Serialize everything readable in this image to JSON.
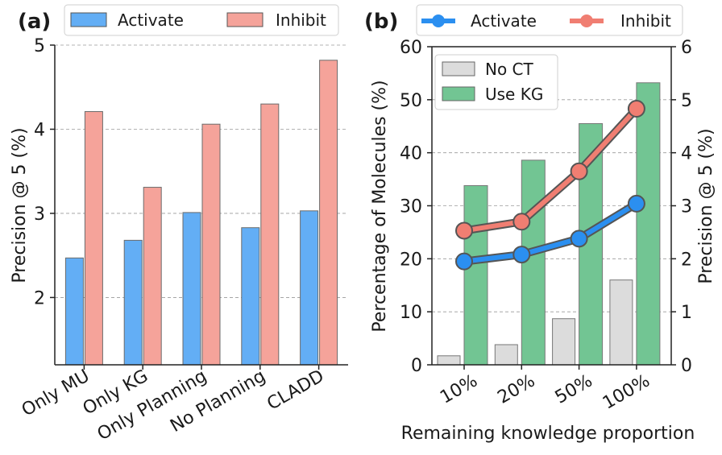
{
  "chart_data": [
    {
      "panel": "(a)",
      "type": "bar",
      "categories": [
        "Only MU",
        "Only KG",
        "Only Planning",
        "No Planning",
        "CLADD"
      ],
      "series": [
        {
          "name": "Activate",
          "values": [
            2.47,
            2.68,
            3.01,
            2.83,
            3.03
          ],
          "color": "#63aef5"
        },
        {
          "name": "Inhibit",
          "values": [
            4.21,
            3.31,
            4.06,
            4.3,
            4.82
          ],
          "color": "#f5a39a"
        }
      ],
      "title": "",
      "xlabel": "",
      "ylabel": "Precision @ 5 (%)",
      "ylim": [
        1.2,
        5.0
      ],
      "yticks": [
        "2",
        "3",
        "4",
        "5"
      ],
      "grid": "y-dashed",
      "legend": "top"
    },
    {
      "panel": "(b)",
      "type": "bar+line",
      "categories": [
        "10%",
        "20%",
        "50%",
        "100%"
      ],
      "bar_series": [
        {
          "name": "No CT",
          "values": [
            1.7,
            3.8,
            8.7,
            16.0
          ],
          "color": "#dcdcdc"
        },
        {
          "name": "Use KG",
          "values": [
            33.8,
            38.6,
            45.5,
            53.2
          ],
          "color": "#72c593"
        }
      ],
      "line_series": [
        {
          "name": "Activate",
          "values": [
            1.95,
            2.08,
            2.38,
            3.04
          ],
          "color": "#2b8ff0"
        },
        {
          "name": "Inhibit",
          "values": [
            2.53,
            2.7,
            3.65,
            4.83
          ],
          "color": "#f07e72"
        }
      ],
      "title": "",
      "xlabel": "Remaining knowledge proportion",
      "ylabel_left": "Percentage of Molecules (%)",
      "ylabel_right": "Precision @ 5 (%)",
      "ylim_left": [
        0,
        60
      ],
      "ylim_right": [
        0,
        6
      ],
      "yticks_left": [
        "0",
        "10",
        "20",
        "30",
        "40",
        "50",
        "60"
      ],
      "yticks_right": [
        "0",
        "1",
        "2",
        "3",
        "4",
        "5",
        "6"
      ],
      "grid": "y-dashed",
      "legend_lines": "top",
      "legend_bars": "top-left"
    }
  ]
}
